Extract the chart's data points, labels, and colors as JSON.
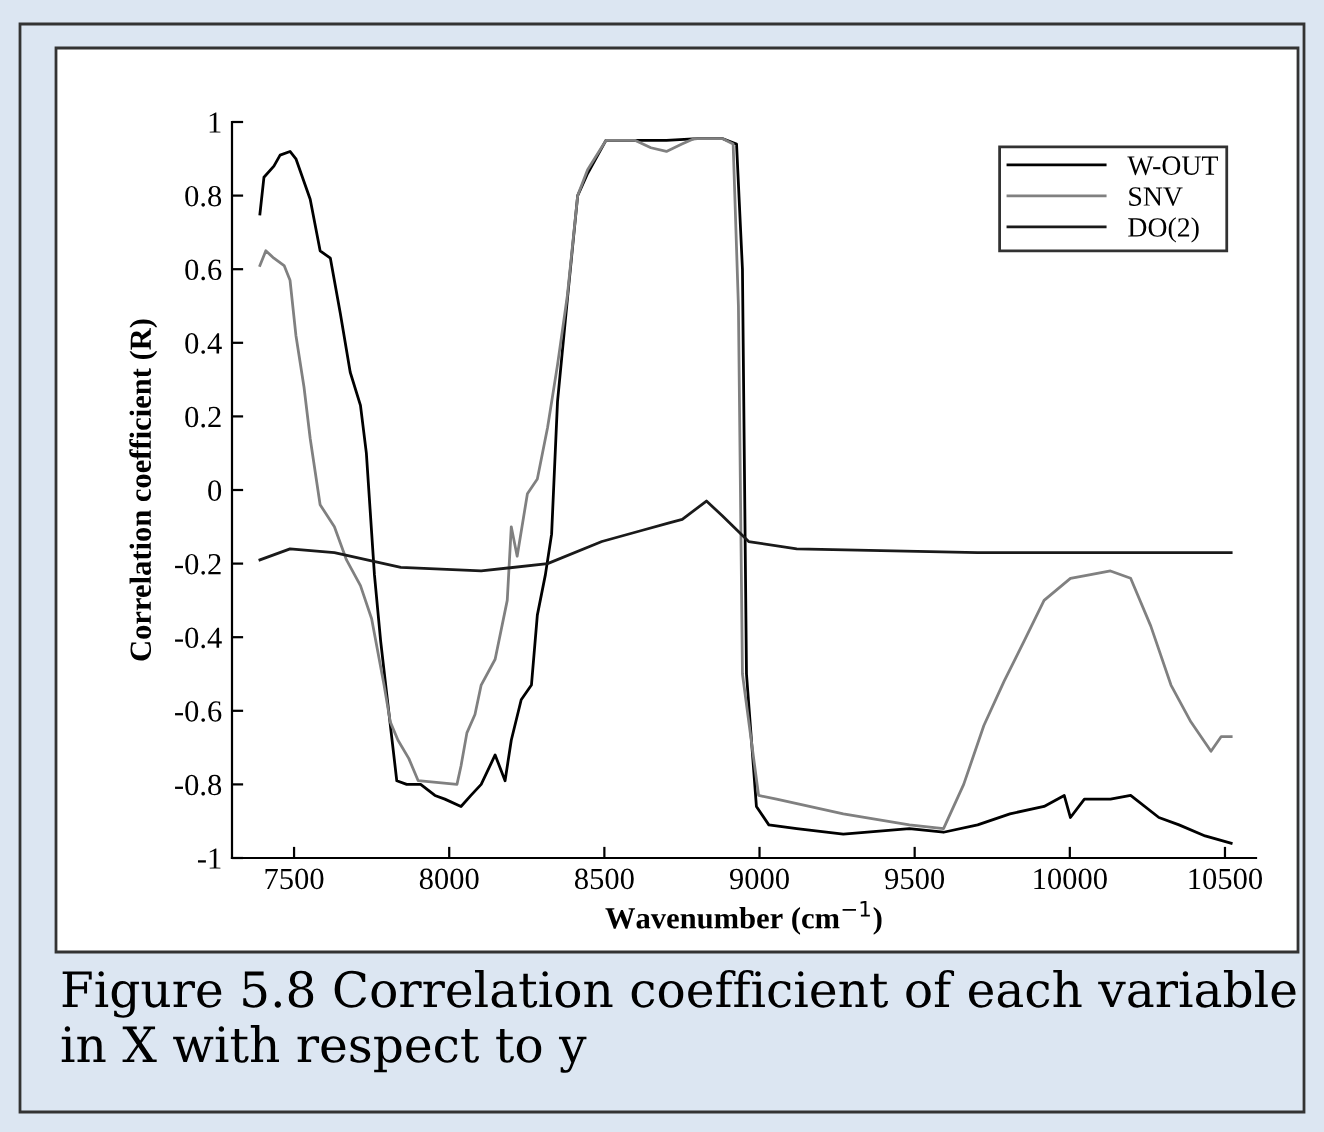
{
  "chart_data": {
    "type": "line",
    "xlabel": "Wavenumber (cm$^{−1}$)",
    "ylabel": "Correlation coefficient (R)",
    "xlim": [
      7300,
      10600
    ],
    "xticks": [
      7500,
      8000,
      8500,
      9000,
      9500,
      10000,
      10500
    ],
    "ylim": [
      -1,
      1
    ],
    "yticks": [
      -1,
      -0.8,
      -0.6,
      -0.4,
      -0.2,
      0,
      0.2,
      0.4,
      0.6,
      0.8,
      1
    ],
    "grid": false,
    "legend": "top right",
    "marker": "none",
    "line_style": "solid",
    "annotations": [
      "Figure 5.8 Correlation coefficient of each variable in X with respect to y"
    ],
    "series": [
      {
        "name": "W-OUT",
        "color": "#000000",
        "x": [
          7390,
          7403,
          7435,
          7455,
          7487,
          7506,
          7552,
          7584,
          7617,
          7649,
          7681,
          7714,
          7733,
          7759,
          7779,
          7798,
          7831,
          7863,
          7908,
          7954,
          7986,
          8038,
          8070,
          8103,
          8148,
          8180,
          8200,
          8232,
          8265,
          8284,
          8310,
          8330,
          8349,
          8381,
          8414,
          8446,
          8505,
          8600,
          8700,
          8800,
          8880,
          8926,
          8945,
          8958,
          8990,
          9030,
          9120,
          9270,
          9483,
          9593,
          9703,
          9807,
          9917,
          9982,
          10002,
          10047,
          10131,
          10196,
          10287,
          10352,
          10436,
          10520
        ],
        "values": [
          0.75,
          0.85,
          0.88,
          0.91,
          0.92,
          0.9,
          0.79,
          0.65,
          0.63,
          0.48,
          0.32,
          0.23,
          0.1,
          -0.23,
          -0.41,
          -0.55,
          -0.79,
          -0.8,
          -0.8,
          -0.83,
          -0.84,
          -0.86,
          -0.83,
          -0.8,
          -0.72,
          -0.79,
          -0.68,
          -0.57,
          -0.53,
          -0.34,
          -0.23,
          -0.12,
          0.24,
          0.52,
          0.8,
          0.86,
          0.95,
          0.95,
          0.95,
          0.955,
          0.955,
          0.94,
          0.6,
          -0.5,
          -0.86,
          -0.91,
          -0.92,
          -0.935,
          -0.92,
          -0.93,
          -0.91,
          -0.88,
          -0.86,
          -0.83,
          -0.89,
          -0.84,
          -0.84,
          -0.83,
          -0.89,
          -0.91,
          -0.94,
          -0.96
        ]
      },
      {
        "name": "SNV",
        "color": "#808080",
        "x": [
          7390,
          7409,
          7435,
          7468,
          7487,
          7506,
          7532,
          7552,
          7584,
          7630,
          7669,
          7714,
          7750,
          7790,
          7810,
          7835,
          7870,
          7900,
          8025,
          8038,
          8057,
          8083,
          8103,
          8148,
          8187,
          8200,
          8219,
          8252,
          8284,
          8317,
          8349,
          8381,
          8414,
          8446,
          8505,
          8600,
          8650,
          8700,
          8750,
          8790,
          8880,
          8915,
          8932,
          8945,
          8997,
          9055,
          9270,
          9483,
          9593,
          9658,
          9723,
          9788,
          9853,
          9917,
          10002,
          10067,
          10131,
          10196,
          10261,
          10326,
          10390,
          10455,
          10488,
          10520
        ],
        "values": [
          0.61,
          0.65,
          0.63,
          0.61,
          0.57,
          0.42,
          0.28,
          0.14,
          -0.04,
          -0.1,
          -0.19,
          -0.26,
          -0.35,
          -0.53,
          -0.63,
          -0.68,
          -0.73,
          -0.79,
          -0.8,
          -0.75,
          -0.66,
          -0.61,
          -0.53,
          -0.46,
          -0.3,
          -0.1,
          -0.18,
          -0.01,
          0.03,
          0.17,
          0.34,
          0.53,
          0.8,
          0.87,
          0.95,
          0.95,
          0.93,
          0.92,
          0.94,
          0.955,
          0.955,
          0.94,
          0.5,
          -0.5,
          -0.83,
          -0.84,
          -0.88,
          -0.91,
          -0.92,
          -0.8,
          -0.64,
          -0.52,
          -0.41,
          -0.3,
          -0.24,
          -0.23,
          -0.22,
          -0.24,
          -0.37,
          -0.53,
          -0.63,
          -0.71,
          -0.67,
          -0.67
        ]
      },
      {
        "name": "DO(2)",
        "color": "#1a1a1a",
        "x": [
          7390,
          7487,
          7630,
          7844,
          8103,
          8317,
          8492,
          8620,
          8706,
          8751,
          8829,
          8880,
          8965,
          9120,
          9703,
          10520
        ],
        "values": [
          -0.19,
          -0.16,
          -0.17,
          -0.21,
          -0.22,
          -0.2,
          -0.14,
          -0.11,
          -0.09,
          -0.08,
          -0.03,
          -0.07,
          -0.14,
          -0.16,
          -0.17,
          -0.17
        ]
      }
    ]
  }
}
